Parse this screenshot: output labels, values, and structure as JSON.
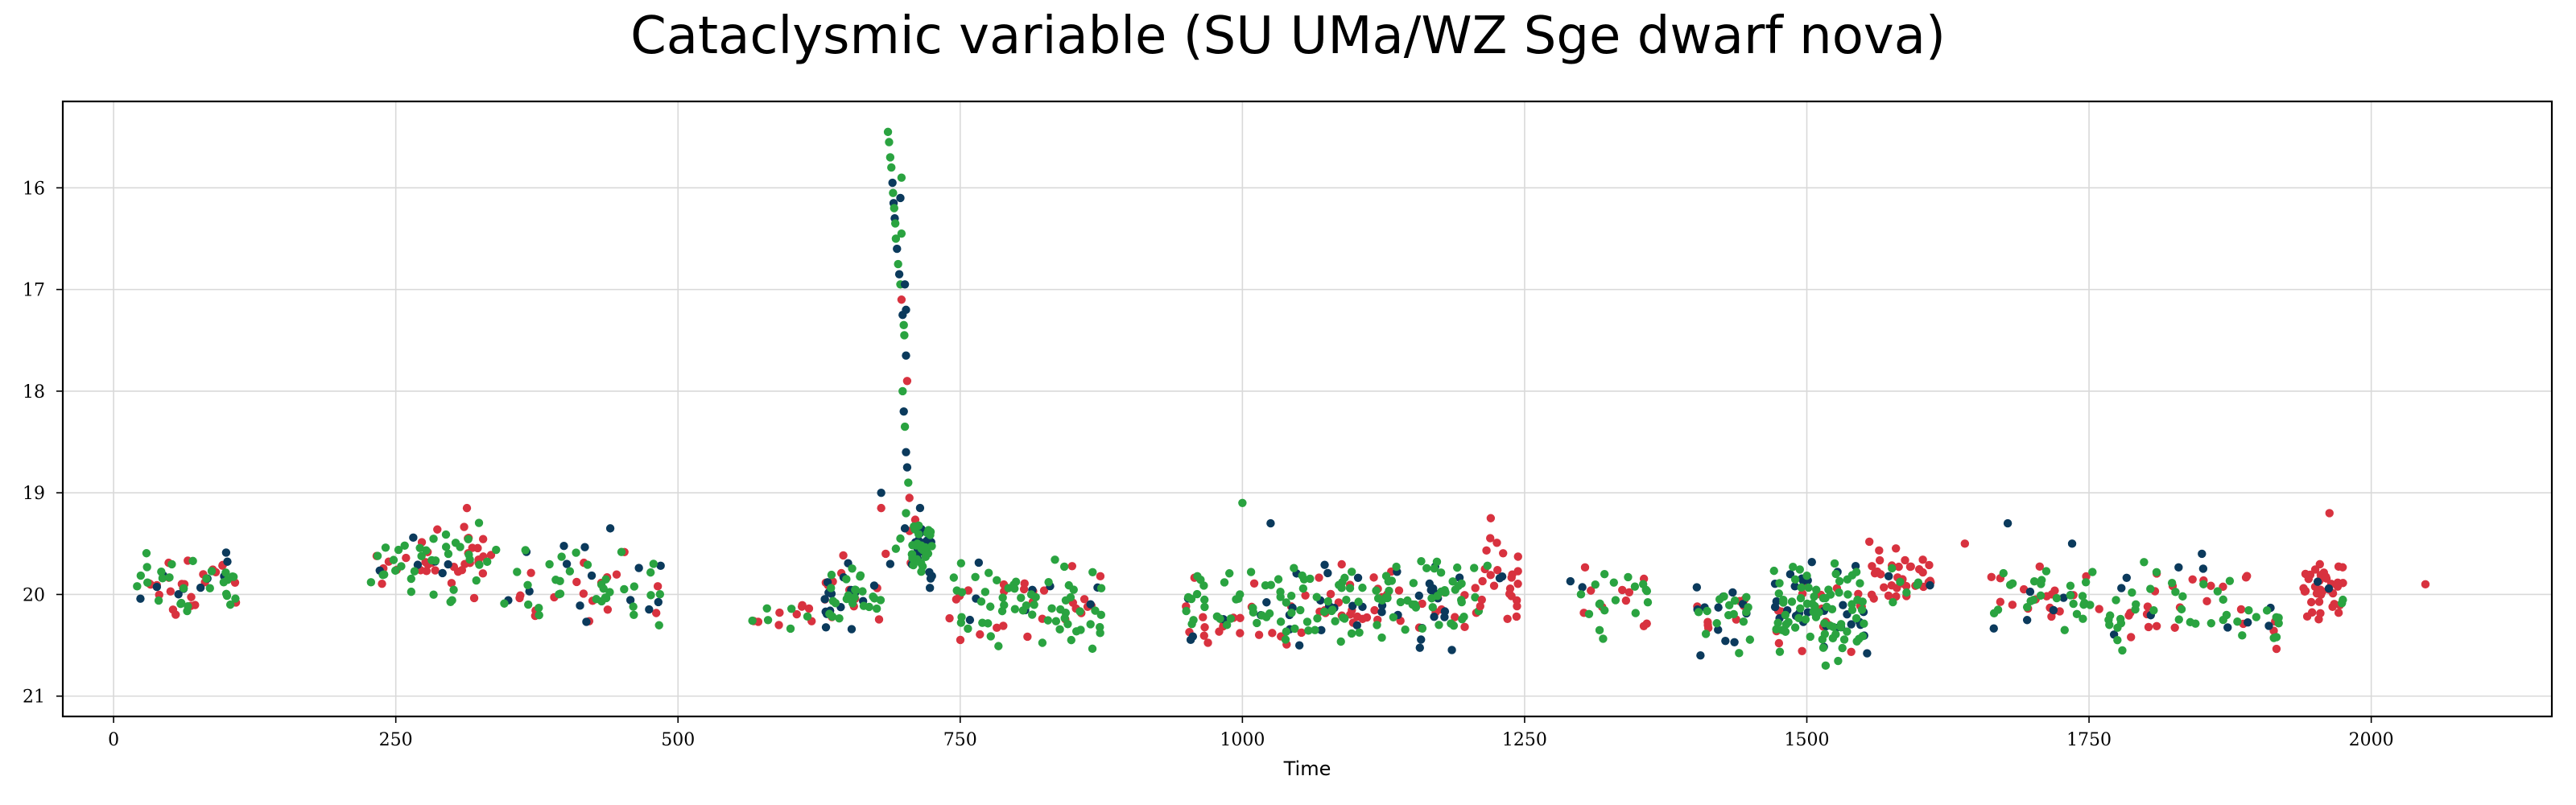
{
  "chart_data": {
    "type": "scatter",
    "title": "Cataclysmic variable (SU UMa/WZ Sge dwarf nova)",
    "xlabel": "Time",
    "ylabel": "",
    "xlim": [
      -45,
      2160
    ],
    "ylim": [
      21.2,
      15.15
    ],
    "y_inverted": true,
    "grid": true,
    "x_ticks": [
      0,
      250,
      500,
      750,
      1000,
      1250,
      1500,
      1750,
      2000
    ],
    "y_ticks": [
      16,
      17,
      18,
      19,
      20,
      21
    ],
    "series_colors": {
      "red": "#d8323f",
      "navy": "#0b3a5c",
      "green": "#2aa340"
    },
    "clusters": [
      {
        "x": [
          20,
          110
        ],
        "y": [
          19.55,
          20.25
        ],
        "n": [
          24,
          10,
          28
        ]
      },
      {
        "x": [
          228,
          340
        ],
        "y": [
          19.25,
          20.1
        ],
        "n": [
          34,
          6,
          36
        ]
      },
      {
        "x": [
          345,
          485
        ],
        "y": [
          19.45,
          20.45
        ],
        "n": [
          18,
          14,
          34
        ]
      },
      {
        "x": [
          565,
          625
        ],
        "y": [
          19.95,
          20.45
        ],
        "n": [
          9,
          0,
          6
        ]
      },
      {
        "x": [
          630,
          680
        ],
        "y": [
          19.55,
          20.45
        ],
        "n": [
          12,
          16,
          24
        ]
      },
      {
        "x": [
          705,
          725
        ],
        "y": [
          19.1,
          19.95
        ],
        "n": [
          6,
          18,
          28
        ]
      },
      {
        "x": [
          740,
          875
        ],
        "y": [
          19.65,
          20.6
        ],
        "n": [
          26,
          8,
          60
        ]
      },
      {
        "x": [
          950,
          1050
        ],
        "y": [
          19.7,
          20.6
        ],
        "n": [
          20,
          10,
          40
        ]
      },
      {
        "x": [
          1050,
          1210
        ],
        "y": [
          19.55,
          20.6
        ],
        "n": [
          35,
          30,
          75
        ]
      },
      {
        "x": [
          1205,
          1245
        ],
        "y": [
          19.35,
          20.3
        ],
        "n": [
          24,
          2,
          2
        ]
      },
      {
        "x": [
          1290,
          1360
        ],
        "y": [
          19.6,
          20.45
        ],
        "n": [
          10,
          2,
          18
        ]
      },
      {
        "x": [
          1400,
          1450
        ],
        "y": [
          19.75,
          20.6
        ],
        "n": [
          8,
          12,
          16
        ]
      },
      {
        "x": [
          1470,
          1555
        ],
        "y": [
          19.55,
          20.7
        ],
        "n": [
          18,
          30,
          75
        ]
      },
      {
        "x": [
          1555,
          1610
        ],
        "y": [
          19.45,
          20.2
        ],
        "n": [
          34,
          2,
          6
        ]
      },
      {
        "x": [
          1660,
          1760
        ],
        "y": [
          19.65,
          20.35
        ],
        "n": [
          18,
          6,
          26
        ]
      },
      {
        "x": [
          1760,
          1920
        ],
        "y": [
          19.65,
          20.55
        ],
        "n": [
          24,
          10,
          40
        ]
      },
      {
        "x": [
          1940,
          1975
        ],
        "y": [
          19.55,
          20.35
        ],
        "n": [
          38,
          2,
          2
        ]
      }
    ],
    "outburst_points": [
      [
        686,
        15.45,
        "green"
      ],
      [
        687,
        15.55,
        "green"
      ],
      [
        688,
        15.7,
        "green"
      ],
      [
        689,
        15.8,
        "green"
      ],
      [
        690,
        15.95,
        "navy"
      ],
      [
        690.5,
        16.05,
        "green"
      ],
      [
        691,
        16.15,
        "navy"
      ],
      [
        691.5,
        16.2,
        "green"
      ],
      [
        692,
        16.3,
        "navy"
      ],
      [
        692.5,
        16.35,
        "green"
      ],
      [
        693,
        16.5,
        "green"
      ],
      [
        694,
        16.6,
        "navy"
      ],
      [
        695,
        16.75,
        "green"
      ],
      [
        696,
        16.85,
        "navy"
      ],
      [
        697,
        16.95,
        "green"
      ],
      [
        698,
        17.1,
        "red"
      ],
      [
        699,
        17.25,
        "navy"
      ],
      [
        700,
        17.35,
        "green"
      ],
      [
        700.5,
        17.45,
        "green"
      ],
      [
        702,
        17.65,
        "navy"
      ],
      [
        703,
        17.9,
        "red"
      ],
      [
        699,
        18.0,
        "green"
      ],
      [
        700,
        18.2,
        "navy"
      ],
      [
        701,
        18.35,
        "green"
      ],
      [
        702,
        18.6,
        "navy"
      ],
      [
        703,
        18.75,
        "navy"
      ],
      [
        704,
        18.9,
        "green"
      ],
      [
        705,
        19.05,
        "red"
      ],
      [
        702,
        19.2,
        "green"
      ],
      [
        701,
        19.35,
        "navy"
      ],
      [
        697,
        19.45,
        "green"
      ],
      [
        693,
        19.55,
        "green"
      ],
      [
        688,
        19.7,
        "navy"
      ],
      [
        684,
        19.6,
        "red"
      ],
      [
        698,
        15.9,
        "green"
      ],
      [
        697,
        16.1,
        "navy"
      ],
      [
        698,
        16.45,
        "green"
      ],
      [
        701,
        16.95,
        "navy"
      ],
      [
        702,
        17.2,
        "navy"
      ],
      [
        680,
        19.15,
        "red"
      ],
      [
        680,
        19.0,
        "navy"
      ]
    ],
    "extra_points": [
      [
        2048,
        19.9,
        "red"
      ],
      [
        1000,
        19.1,
        "green"
      ],
      [
        1025,
        19.3,
        "navy"
      ],
      [
        1678,
        19.3,
        "navy"
      ],
      [
        1735,
        19.5,
        "navy"
      ],
      [
        1963,
        19.2,
        "red"
      ],
      [
        313,
        19.15,
        "red"
      ],
      [
        440,
        19.35,
        "navy"
      ],
      [
        1220,
        19.25,
        "red"
      ],
      [
        1850,
        19.6,
        "navy"
      ],
      [
        1640,
        19.5,
        "red"
      ]
    ]
  }
}
